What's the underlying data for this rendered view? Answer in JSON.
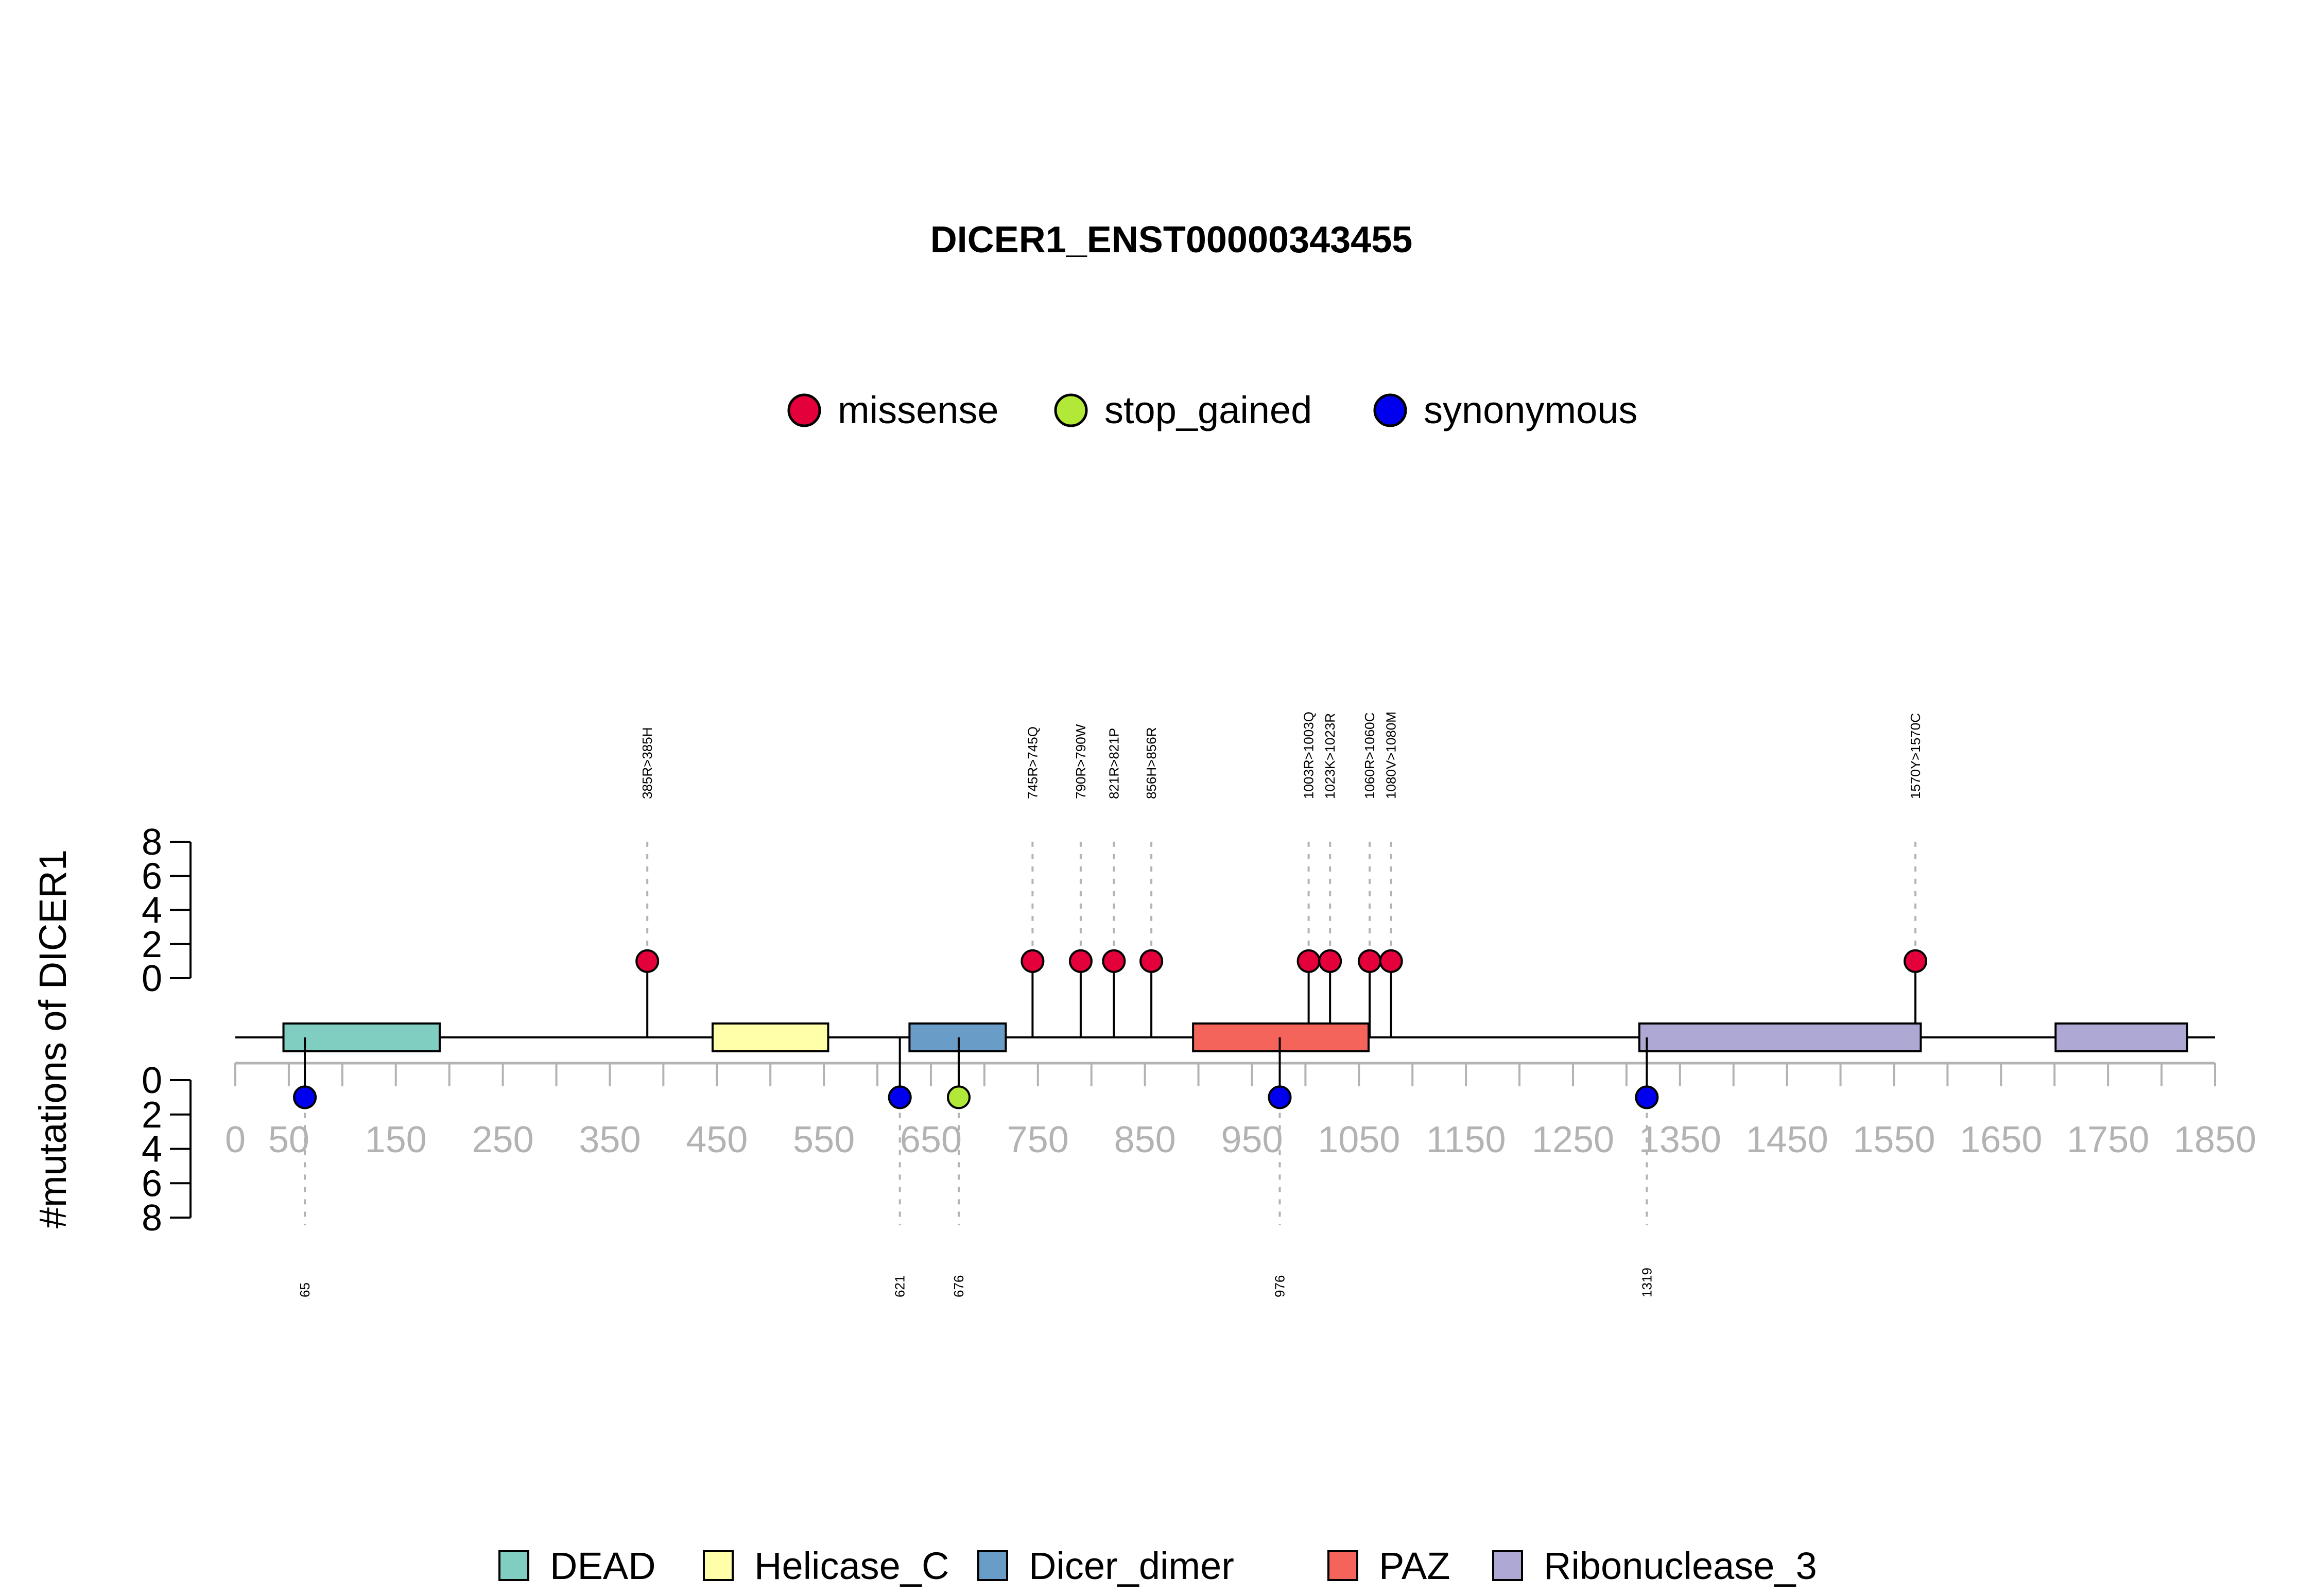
{
  "chart_data": {
    "type": "lollipop",
    "title": "DICER1_ENST00000343455",
    "ylabel": "#mutations of DICER1",
    "xlim": [
      0,
      1850
    ],
    "x_ticks": [
      0,
      50,
      150,
      250,
      350,
      450,
      550,
      650,
      750,
      850,
      950,
      1050,
      1150,
      1250,
      1350,
      1450,
      1550,
      1650,
      1750,
      1850
    ],
    "y_ticks": [
      0,
      2,
      4,
      6,
      8
    ],
    "ylim": [
      0,
      8
    ],
    "mutation_legend": [
      {
        "name": "missense",
        "color": "#E4003A"
      },
      {
        "name": "stop_gained",
        "color": "#B2E838"
      },
      {
        "name": "synonymous",
        "color": "#0000EE"
      }
    ],
    "domain_legend": [
      {
        "name": "DEAD",
        "color": "#80CDC1"
      },
      {
        "name": "Helicase_C",
        "color": "#FFFFAA"
      },
      {
        "name": "Dicer_dimer",
        "color": "#6A9CC8"
      },
      {
        "name": "PAZ",
        "color": "#F4645B"
      },
      {
        "name": "Ribonuclease_3",
        "color": "#ADA9D4"
      }
    ],
    "domains": [
      {
        "name": "DEAD",
        "start": 45,
        "end": 191,
        "color": "#80CDC1"
      },
      {
        "name": "Helicase_C",
        "start": 446,
        "end": 554,
        "color": "#FFFFAA"
      },
      {
        "name": "Dicer_dimer",
        "start": 630,
        "end": 720,
        "color": "#6A9CC8"
      },
      {
        "name": "PAZ",
        "start": 895,
        "end": 1059,
        "color": "#F4645B"
      },
      {
        "name": "Ribonuclease_3",
        "start": 1312,
        "end": 1575,
        "color": "#ADA9D4"
      },
      {
        "name": "Ribonuclease_3",
        "start": 1701,
        "end": 1824,
        "color": "#ADA9D4"
      }
    ],
    "mutations_top": [
      {
        "position": 385,
        "label": "385R>385H",
        "count": 1,
        "type": "missense"
      },
      {
        "position": 745,
        "label": "745R>745Q",
        "count": 1,
        "type": "missense"
      },
      {
        "position": 790,
        "label": "790R>790W",
        "count": 1,
        "type": "missense"
      },
      {
        "position": 821,
        "label": "821R>821P",
        "count": 1,
        "type": "missense"
      },
      {
        "position": 856,
        "label": "856H>856R",
        "count": 1,
        "type": "missense"
      },
      {
        "position": 1003,
        "label": "1003R>1003Q",
        "count": 1,
        "type": "missense"
      },
      {
        "position": 1023,
        "label": "1023K>1023R",
        "count": 1,
        "type": "missense"
      },
      {
        "position": 1060,
        "label": "1060R>1060C",
        "count": 1,
        "type": "missense"
      },
      {
        "position": 1080,
        "label": "1080V>1080M",
        "count": 1,
        "type": "missense"
      },
      {
        "position": 1570,
        "label": "1570Y>1570C",
        "count": 1,
        "type": "missense"
      }
    ],
    "mutations_bottom": [
      {
        "position": 65,
        "label": "65",
        "count": 1,
        "type": "synonymous"
      },
      {
        "position": 621,
        "label": "621",
        "count": 1,
        "type": "synonymous"
      },
      {
        "position": 676,
        "label": "676",
        "count": 1,
        "type": "stop_gained"
      },
      {
        "position": 976,
        "label": "976",
        "count": 1,
        "type": "synonymous"
      },
      {
        "position": 1319,
        "label": "1319",
        "count": 1,
        "type": "synonymous"
      }
    ]
  }
}
